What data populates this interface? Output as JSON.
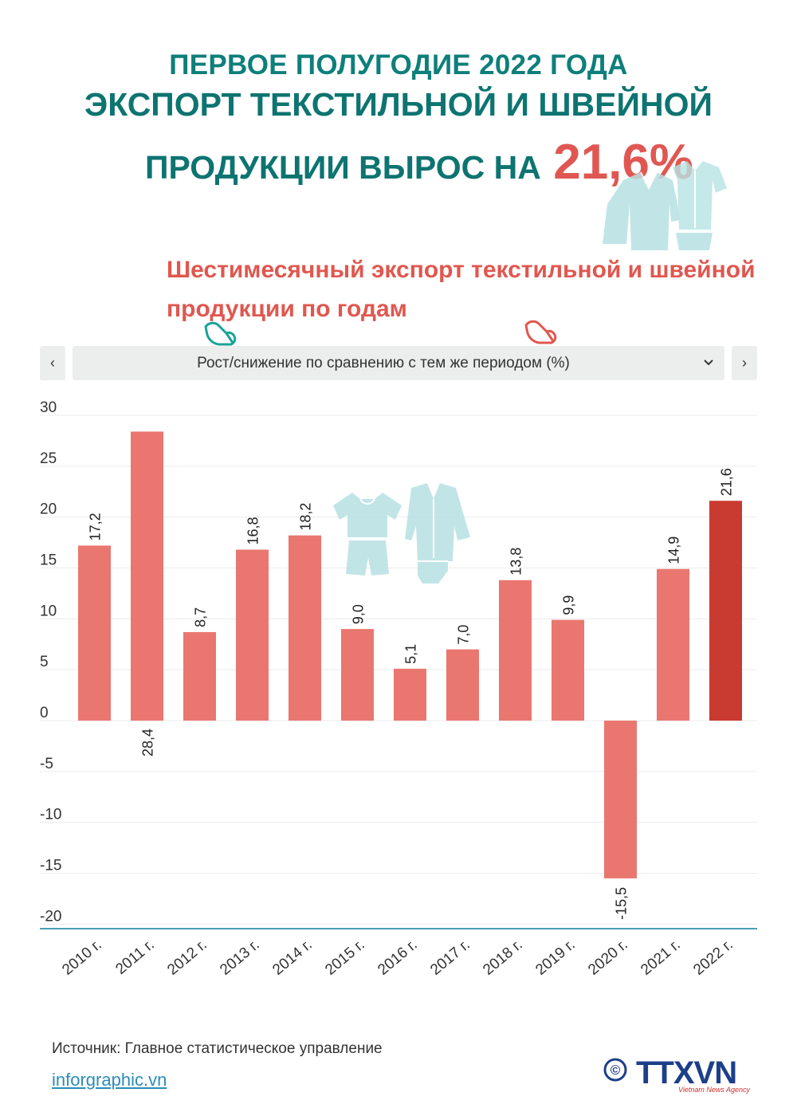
{
  "header": {
    "line1": "ПЕРВОЕ ПОЛУГОДИЕ 2022 ГОДА",
    "line2": "ЭКСПОРТ ТЕКСТИЛЬНОЙ И ШВЕЙНОЙ",
    "line3": "ПРОДУКЦИИ ВЫРОС НА",
    "highlight": "21,6%"
  },
  "subtitle": "Шестимесячный экспорт текстильной и швейной продукции по годам",
  "controls": {
    "prev_label": "‹",
    "next_label": "›",
    "selected_metric": "Рост/снижение по сравнению с тем же периодом (%)"
  },
  "icons": [
    "clothing-icon",
    "hand-pointer-icon",
    "chevron-down-icon"
  ],
  "colors": {
    "title": "#0d7471",
    "highlight": "#e05752",
    "bar": "#e9776f",
    "bar_highlight": "#c93a30",
    "baseline": "#4a9fb5",
    "icon": "#b7e1e3"
  },
  "chart_data": {
    "type": "bar",
    "categories": [
      "2010 г.",
      "2011 г.",
      "2012 г.",
      "2013 г.",
      "2014 г.",
      "2015 г.",
      "2016 г.",
      "2017 г.",
      "2018 г.",
      "2019 г.",
      "2020 г.",
      "2021 г.",
      "2022 г."
    ],
    "values": [
      17.2,
      28.4,
      8.7,
      16.8,
      18.2,
      9.0,
      5.1,
      7.0,
      13.8,
      9.9,
      -15.5,
      14.9,
      21.6
    ],
    "labels": [
      "17,2",
      "28,4",
      "8,7",
      "16,8",
      "18,2",
      "9,0",
      "5,1",
      "7,0",
      "13,8",
      "9,9",
      "-15,5",
      "14,9",
      "21,6"
    ],
    "highlight_index": 12,
    "yticks": [
      "30",
      "25",
      "20",
      "15",
      "10",
      "5",
      "0",
      "-5",
      "-10",
      "-15",
      "-20"
    ],
    "ylim": [
      -20,
      30
    ],
    "grid": true
  },
  "footer": {
    "source": "Источник: Главное статистическое управление",
    "link": "inforgraphic.vn",
    "copyright": "©",
    "logo_text": "TTXVN",
    "logo_subtext": "Vietnam News Agency"
  }
}
